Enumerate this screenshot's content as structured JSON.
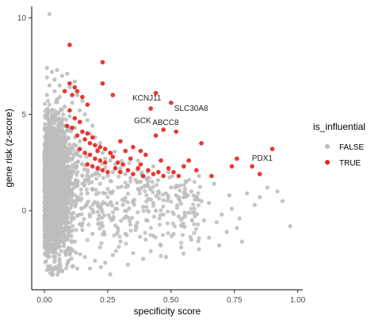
{
  "chart_data": {
    "type": "scatter",
    "xlabel": "specificity score",
    "ylabel": "gene risk (z-score)",
    "xlim": [
      -0.05,
      1.02
    ],
    "ylim": [
      -4.1,
      10.6
    ],
    "x_ticks": [
      0.0,
      0.25,
      0.5,
      0.75,
      1.0
    ],
    "x_tick_labels": [
      "0.00",
      "0.25",
      "0.50",
      "0.75",
      "1.00"
    ],
    "y_ticks": [
      0,
      5,
      10
    ],
    "y_tick_labels": [
      "0",
      "5",
      "10"
    ],
    "grid": false,
    "legend": {
      "title": "is_influential",
      "placement": "right",
      "entries": [
        {
          "label": "FALSE",
          "color": "#bdbdbd"
        },
        {
          "label": "TRUE",
          "color": "#e8211c"
        }
      ]
    },
    "series": [
      {
        "name": "FALSE",
        "color": "#bdbdbd",
        "note_dense_region": "thousands of overlapping points concentrated at specificity 0-0.15, z-score -3 to 7",
        "points": [
          [
            0.02,
            10.2
          ],
          [
            0.01,
            7.4
          ],
          [
            0.03,
            7.2
          ],
          [
            0.05,
            7.3
          ],
          [
            0.07,
            7.0
          ],
          [
            0.09,
            7.1
          ],
          [
            0.12,
            6.7
          ],
          [
            0.04,
            6.8
          ],
          [
            0.06,
            6.5
          ],
          [
            0.1,
            6.4
          ],
          [
            0.13,
            6.0
          ],
          [
            0.15,
            5.7
          ],
          [
            0.11,
            5.6
          ],
          [
            0.14,
            5.2
          ],
          [
            0.16,
            5.0
          ],
          [
            0.17,
            4.7
          ],
          [
            0.19,
            4.4
          ],
          [
            0.18,
            4.0
          ],
          [
            0.2,
            3.8
          ],
          [
            0.22,
            3.5
          ],
          [
            0.21,
            3.2
          ],
          [
            0.23,
            3.0
          ],
          [
            0.24,
            2.7
          ],
          [
            0.26,
            2.6
          ],
          [
            0.28,
            2.4
          ],
          [
            0.3,
            2.2
          ],
          [
            0.27,
            2.0
          ],
          [
            0.25,
            1.8
          ],
          [
            0.32,
            1.9
          ],
          [
            0.34,
            1.7
          ],
          [
            0.36,
            1.6
          ],
          [
            0.38,
            1.5
          ],
          [
            0.33,
            1.3
          ],
          [
            0.29,
            1.2
          ],
          [
            0.4,
            1.3
          ],
          [
            0.42,
            1.1
          ],
          [
            0.45,
            1.0
          ],
          [
            0.48,
            0.9
          ],
          [
            0.5,
            1.2
          ],
          [
            0.52,
            0.8
          ],
          [
            0.55,
            0.7
          ],
          [
            0.58,
            1.0
          ],
          [
            0.6,
            0.6
          ],
          [
            0.62,
            0.5
          ],
          [
            0.65,
            0.4
          ],
          [
            0.35,
            0.5
          ],
          [
            0.31,
            0.3
          ],
          [
            0.39,
            0.2
          ],
          [
            0.44,
            0.0
          ],
          [
            0.47,
            -0.2
          ],
          [
            0.53,
            -0.3
          ],
          [
            0.57,
            -0.1
          ],
          [
            0.63,
            -0.5
          ],
          [
            0.68,
            -0.6
          ],
          [
            0.7,
            -0.2
          ],
          [
            0.74,
            0.1
          ],
          [
            0.77,
            -0.4
          ],
          [
            0.8,
            0.9
          ],
          [
            0.85,
            0.7
          ],
          [
            0.88,
            1.2
          ],
          [
            0.92,
            1.0
          ],
          [
            0.94,
            0.5
          ],
          [
            0.97,
            -0.8
          ],
          [
            0.83,
            0.3
          ],
          [
            0.73,
            0.8
          ],
          [
            0.67,
            1.4
          ],
          [
            0.61,
            1.8
          ],
          [
            0.56,
            1.5
          ],
          [
            0.49,
            2.0
          ],
          [
            0.43,
            2.3
          ],
          [
            0.37,
            2.6
          ],
          [
            0.41,
            0.6
          ],
          [
            0.26,
            -0.4
          ],
          [
            0.29,
            -0.9
          ],
          [
            0.32,
            -1.2
          ],
          [
            0.36,
            -1.0
          ],
          [
            0.4,
            -1.5
          ],
          [
            0.43,
            -1.3
          ],
          [
            0.46,
            -1.8
          ],
          [
            0.51,
            -1.2
          ],
          [
            0.54,
            -1.9
          ],
          [
            0.58,
            -1.5
          ],
          [
            0.61,
            -2.0
          ],
          [
            0.65,
            -1.4
          ],
          [
            0.69,
            -1.8
          ],
          [
            0.72,
            -1.1
          ],
          [
            0.78,
            -1.6
          ],
          [
            0.76,
            -0.9
          ],
          [
            0.35,
            -2.2
          ],
          [
            0.39,
            -2.5
          ],
          [
            0.42,
            -2.1
          ],
          [
            0.48,
            -2.4
          ],
          [
            0.33,
            -2.8
          ],
          [
            0.3,
            -1.6
          ],
          [
            0.27,
            -2.3
          ],
          [
            0.24,
            -2.7
          ],
          [
            0.22,
            -1.9
          ],
          [
            0.2,
            -2.6
          ],
          [
            0.18,
            -3.0
          ],
          [
            0.16,
            -2.4
          ],
          [
            0.19,
            -1.2
          ],
          [
            0.23,
            -0.8
          ],
          [
            0.21,
            0.4
          ],
          [
            0.24,
            0.9
          ],
          [
            0.27,
            1.0
          ],
          [
            0.17,
            1.6
          ],
          [
            0.2,
            1.9
          ],
          [
            0.15,
            2.4
          ],
          [
            0.13,
            2.9
          ],
          [
            0.14,
            3.6
          ],
          [
            0.12,
            4.3
          ],
          [
            0.1,
            4.9
          ],
          [
            0.08,
            5.4
          ],
          [
            0.06,
            5.9
          ],
          [
            0.04,
            6.2
          ],
          [
            0.02,
            6.5
          ],
          [
            0.01,
            6.0
          ],
          [
            0.03,
            -3.3
          ],
          [
            0.05,
            -3.0
          ],
          [
            0.07,
            -3.1
          ],
          [
            0.09,
            -2.8
          ],
          [
            0.11,
            -2.9
          ],
          [
            0.13,
            -3.0
          ],
          [
            0.26,
            -3.3
          ],
          [
            0.15,
            -1.0
          ],
          [
            0.12,
            -1.6
          ],
          [
            0.1,
            -2.0
          ],
          [
            0.09,
            -0.6
          ],
          [
            0.11,
            0.8
          ],
          [
            0.13,
            1.4
          ],
          [
            0.16,
            0.2
          ],
          [
            0.18,
            -0.3
          ],
          [
            0.14,
            -0.7
          ],
          [
            0.17,
            0.9
          ],
          [
            0.19,
            1.1
          ],
          [
            0.22,
            1.4
          ],
          [
            0.25,
            0.3
          ],
          [
            0.28,
            0.1
          ]
        ]
      },
      {
        "name": "TRUE",
        "color": "#e8211c",
        "points": [
          [
            0.1,
            8.6
          ],
          [
            0.1,
            6.6
          ],
          [
            0.12,
            6.4
          ],
          [
            0.13,
            6.2
          ],
          [
            0.08,
            6.2
          ],
          [
            0.11,
            6.0
          ],
          [
            0.15,
            5.9
          ],
          [
            0.17,
            5.5
          ],
          [
            0.23,
            6.6
          ],
          [
            0.27,
            6.0
          ],
          [
            0.23,
            7.7
          ],
          [
            0.44,
            6.1
          ],
          [
            0.5,
            5.6
          ],
          [
            0.42,
            5.3
          ],
          [
            0.47,
            4.2
          ],
          [
            0.52,
            4.1
          ],
          [
            0.44,
            3.9
          ],
          [
            0.1,
            5.2
          ],
          [
            0.12,
            4.8
          ],
          [
            0.14,
            4.6
          ],
          [
            0.09,
            4.4
          ],
          [
            0.11,
            4.3
          ],
          [
            0.15,
            4.1
          ],
          [
            0.17,
            4.0
          ],
          [
            0.13,
            3.9
          ],
          [
            0.19,
            3.8
          ],
          [
            0.16,
            3.7
          ],
          [
            0.18,
            3.5
          ],
          [
            0.2,
            3.4
          ],
          [
            0.22,
            3.3
          ],
          [
            0.21,
            3.1
          ],
          [
            0.24,
            3.2
          ],
          [
            0.26,
            3.0
          ],
          [
            0.14,
            3.2
          ],
          [
            0.16,
            3.0
          ],
          [
            0.18,
            2.9
          ],
          [
            0.2,
            2.7
          ],
          [
            0.22,
            2.6
          ],
          [
            0.24,
            2.5
          ],
          [
            0.17,
            2.4
          ],
          [
            0.19,
            2.3
          ],
          [
            0.21,
            2.2
          ],
          [
            0.23,
            2.1
          ],
          [
            0.25,
            2.0
          ],
          [
            0.28,
            2.2
          ],
          [
            0.3,
            2.0
          ],
          [
            0.31,
            2.4
          ],
          [
            0.33,
            2.1
          ],
          [
            0.35,
            1.9
          ],
          [
            0.37,
            2.2
          ],
          [
            0.39,
            1.8
          ],
          [
            0.41,
            2.1
          ],
          [
            0.43,
            1.9
          ],
          [
            0.45,
            2.0
          ],
          [
            0.47,
            1.8
          ],
          [
            0.49,
            2.2
          ],
          [
            0.51,
            2.0
          ],
          [
            0.53,
            1.8
          ],
          [
            0.55,
            2.3
          ],
          [
            0.57,
            2.6
          ],
          [
            0.27,
            2.8
          ],
          [
            0.29,
            2.5
          ],
          [
            0.32,
            3.1
          ],
          [
            0.34,
            2.7
          ],
          [
            0.38,
            2.4
          ],
          [
            0.4,
            2.9
          ],
          [
            0.3,
            3.6
          ],
          [
            0.35,
            3.3
          ],
          [
            0.38,
            3.1
          ],
          [
            0.46,
            2.6
          ],
          [
            0.62,
            3.5
          ],
          [
            0.74,
            2.3
          ],
          [
            0.76,
            2.7
          ],
          [
            0.82,
            2.3
          ],
          [
            0.85,
            1.9
          ],
          [
            0.9,
            3.2
          ],
          [
            0.6,
            2.1
          ],
          [
            0.66,
            1.8
          ]
        ]
      }
    ],
    "annotations": [
      {
        "text": "KCNJ11",
        "x": 0.42,
        "y": 5.3
      },
      {
        "text": "SLC30A8",
        "x": 0.5,
        "y": 5.6
      },
      {
        "text": "GCK",
        "x": 0.4,
        "y": 4.8
      },
      {
        "text": "ABCC8",
        "x": 0.47,
        "y": 4.2
      },
      {
        "text": "PDX1",
        "x": 0.86,
        "y": 2.6
      }
    ]
  }
}
